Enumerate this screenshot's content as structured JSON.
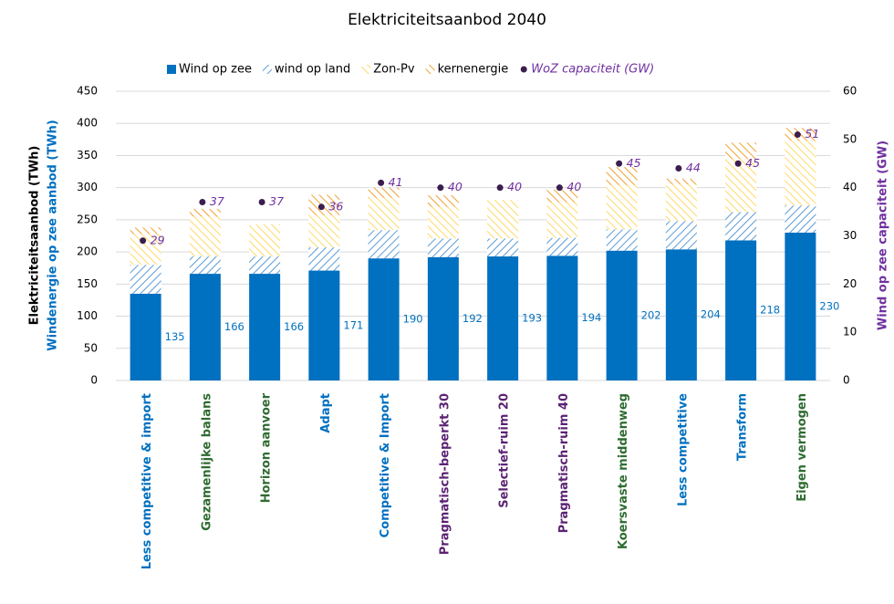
{
  "chart_data": {
    "type": "bar",
    "stacked": true,
    "title": "Elektriciteitsaanbod 2040",
    "y_label": "Elektriciteitsaanbod (TWh)",
    "y_label_2": "Windenergie op zee aanbod (TWh)",
    "y2_label": "Wind op zee capaciteit (GW)",
    "categories": [
      "Less competitive & import",
      "Gezamenlijke balans",
      "Horizon aanvoer",
      "Adapt",
      "Competitive & Import",
      "Pragmatisch-beperkt 30",
      "Selectief-ruim 20",
      "Pragmatisch-ruim 40",
      "Koersvaste middenweg",
      "Less competitive",
      "Transform",
      "Eigen vermogen"
    ],
    "category_colors": [
      "#0070c0",
      "#2e6b30",
      "#2e6b30",
      "#0070c0",
      "#0070c0",
      "#5b2373",
      "#5b2373",
      "#5b2373",
      "#2e6b30",
      "#0070c0",
      "#0070c0",
      "#2e6b30"
    ],
    "series": [
      {
        "name": "Wind op zee",
        "color": "#0070c0",
        "fill": "solid",
        "values": [
          135,
          166,
          166,
          171,
          190,
          192,
          193,
          194,
          202,
          204,
          218,
          230
        ],
        "label_color": "#0070c0"
      },
      {
        "name": "wind op land",
        "color": "#5b9bd5",
        "fill": "hatch",
        "values": [
          45,
          27,
          27,
          36,
          44,
          29,
          28,
          28,
          33,
          44,
          44,
          42
        ]
      },
      {
        "name": "Zon-Pv",
        "color": "#ffd966",
        "fill": "hatch",
        "values": [
          48,
          62,
          50,
          50,
          50,
          49,
          60,
          55,
          69,
          57,
          83,
          101
        ]
      },
      {
        "name": "kernenergie",
        "color": "#f0a030",
        "fill": "hatch",
        "values": [
          10,
          12,
          0,
          32,
          16,
          18,
          0,
          20,
          28,
          9,
          25,
          20
        ]
      },
      {
        "name": "WoZ capaciteit (GW)",
        "type": "scatter",
        "axis": "y2",
        "color": "#3b1e4f",
        "label_color": "#7030a0",
        "values": [
          29,
          37,
          37,
          36,
          41,
          40,
          40,
          40,
          45,
          44,
          45,
          51
        ]
      }
    ],
    "ylim": [
      0,
      450
    ],
    "yticks": [
      0,
      50,
      100,
      150,
      200,
      250,
      300,
      350,
      400,
      450
    ],
    "y2lim": [
      0,
      60
    ],
    "y2ticks": [
      0,
      10,
      20,
      30,
      40,
      50,
      60
    ],
    "grid": true,
    "legend": "top"
  }
}
